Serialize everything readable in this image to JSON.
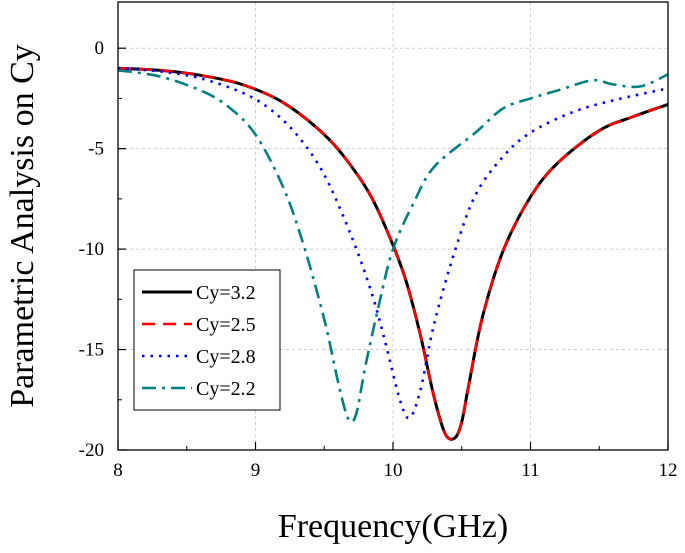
{
  "chart_data": {
    "type": "line",
    "title": "",
    "xlabel": "Frequency(GHz)",
    "ylabel": "Parametric Analysis on Cy",
    "xlim": [
      8,
      12
    ],
    "ylim": [
      -20,
      2.3
    ],
    "xticks": [
      8,
      9,
      10,
      11,
      12
    ],
    "xtick_labels": [
      "8",
      "9",
      "10",
      "11",
      "12"
    ],
    "yticks": [
      0,
      -5,
      -10,
      -15,
      -20
    ],
    "ytick_labels": [
      "0",
      "-5",
      "-10",
      "-15",
      "-20"
    ],
    "grid": true,
    "legend_position": "bottom-left",
    "series": [
      {
        "name": "Cy=3.2",
        "color": "#000000",
        "dash": "solid",
        "x": [
          8.0,
          8.3,
          8.6,
          8.9,
          9.2,
          9.5,
          9.7,
          9.85,
          10.0,
          10.1,
          10.2,
          10.3,
          10.38,
          10.45,
          10.5,
          10.55,
          10.65,
          10.8,
          11.0,
          11.2,
          11.5,
          11.75,
          12.0
        ],
        "y": [
          -1.0,
          -1.1,
          -1.35,
          -1.8,
          -2.7,
          -4.3,
          -5.9,
          -7.5,
          -9.8,
          -11.7,
          -14.3,
          -17.4,
          -19.2,
          -19.4,
          -18.6,
          -16.8,
          -13.4,
          -10.1,
          -7.4,
          -5.7,
          -4.1,
          -3.4,
          -2.8
        ]
      },
      {
        "name": "Cy=2.5",
        "color": "#ff0000",
        "dash": "dashed",
        "x": [
          8.0,
          8.3,
          8.6,
          8.9,
          9.2,
          9.5,
          9.7,
          9.85,
          10.0,
          10.1,
          10.2,
          10.3,
          10.38,
          10.45,
          10.5,
          10.55,
          10.65,
          10.8,
          11.0,
          11.2,
          11.5,
          11.75,
          12.0
        ],
        "y": [
          -1.0,
          -1.1,
          -1.35,
          -1.8,
          -2.7,
          -4.3,
          -5.9,
          -7.5,
          -9.8,
          -11.7,
          -14.3,
          -17.4,
          -19.2,
          -19.4,
          -18.6,
          -16.8,
          -13.4,
          -10.1,
          -7.4,
          -5.7,
          -4.1,
          -3.4,
          -2.8
        ]
      },
      {
        "name": "Cy=2.8",
        "color": "#0000ff",
        "dash": "dotted",
        "x": [
          8.0,
          8.3,
          8.6,
          8.9,
          9.1,
          9.3,
          9.5,
          9.7,
          9.85,
          9.95,
          10.05,
          10.12,
          10.2,
          10.3,
          10.45,
          10.6,
          10.8,
          11.0,
          11.3,
          11.6,
          12.0
        ],
        "y": [
          -1.0,
          -1.15,
          -1.5,
          -2.2,
          -3.0,
          -4.3,
          -6.3,
          -9.4,
          -12.3,
          -14.8,
          -17.5,
          -18.4,
          -17.0,
          -13.7,
          -10.1,
          -7.3,
          -5.4,
          -4.2,
          -3.2,
          -2.6,
          -2.0
        ]
      },
      {
        "name": "Cy=2.2",
        "color": "#008080",
        "dash": "dash-dot",
        "x": [
          8.0,
          8.3,
          8.6,
          8.8,
          9.0,
          9.2,
          9.35,
          9.5,
          9.6,
          9.66,
          9.7,
          9.74,
          9.8,
          9.9,
          10.0,
          10.15,
          10.3,
          10.6,
          10.8,
          11.0,
          11.2,
          11.45,
          11.6,
          11.8,
          12.0
        ],
        "y": [
          -1.1,
          -1.4,
          -2.1,
          -2.9,
          -4.3,
          -6.9,
          -9.8,
          -13.5,
          -16.6,
          -18.2,
          -18.6,
          -18.0,
          -15.8,
          -12.7,
          -10.0,
          -7.7,
          -5.9,
          -4.2,
          -3.0,
          -2.5,
          -2.1,
          -1.6,
          -1.8,
          -1.9,
          -1.3
        ]
      }
    ]
  }
}
